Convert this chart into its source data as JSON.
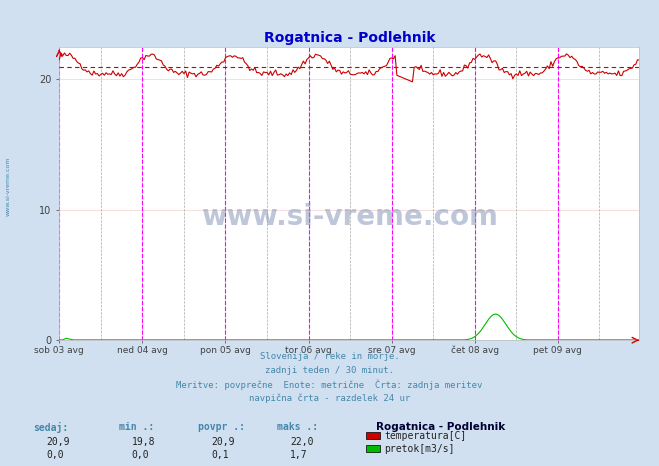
{
  "title": "Rogatnica - Podlehnik",
  "title_color": "#0000cc",
  "bg_color": "#d0e0f0",
  "plot_bg_color": "#ffffff",
  "grid_color": "#e8c8c8",
  "grid_color_main": "#d0d0d0",
  "xlabel_color": "#404040",
  "text_color": "#4488aa",
  "n_points": 336,
  "ylim_temp": [
    0,
    22.5
  ],
  "ylim_flow": [
    0,
    22.5
  ],
  "flow_scale": 13.235,
  "temp_avg": 20.9,
  "temp_min": 19.8,
  "temp_max": 22.0,
  "flow_max": 1.7,
  "flow_avg": 0.1,
  "x_tick_positions": [
    0,
    48,
    96,
    144,
    192,
    240,
    288
  ],
  "x_tick_labels": [
    "sob 03 avg",
    "ned 04 avg",
    "pon 05 avg",
    "tor 06 avg",
    "sre 07 avg",
    "čet 08 avg",
    "pet 09 avg"
  ],
  "vline_color": "#ff00ff",
  "vline_color2": "#aaaaaa",
  "hline_color": "#cc0000",
  "temp_line_color": "#cc0000",
  "flow_line_color": "#00bb00",
  "avg_line_value": 20.9,
  "subtitle_lines": [
    "Slovenija / reke in morje.",
    "zadnji teden / 30 minut.",
    "Meritve: povprečne  Enote: metrične  Črta: zadnja meritev",
    "navpična črta - razdelek 24 ur"
  ],
  "legend_station": "Rogatnica - Podlehnik",
  "legend_items": [
    {
      "label": "temperatura[C]",
      "color": "#cc0000"
    },
    {
      "label": "pretok[m3/s]",
      "color": "#00bb00"
    }
  ],
  "table_headers": [
    "sedaj:",
    "min .:",
    "povpr .:",
    "maks .:"
  ],
  "table_row1": [
    "20,9",
    "19,8",
    "20,9",
    "22,0"
  ],
  "table_row2": [
    "0,0",
    "0,0",
    "0,1",
    "1,7"
  ],
  "watermark": "www.si-vreme.com",
  "left_label": "www.si-vreme.com",
  "yticks": [
    0,
    10,
    20
  ]
}
